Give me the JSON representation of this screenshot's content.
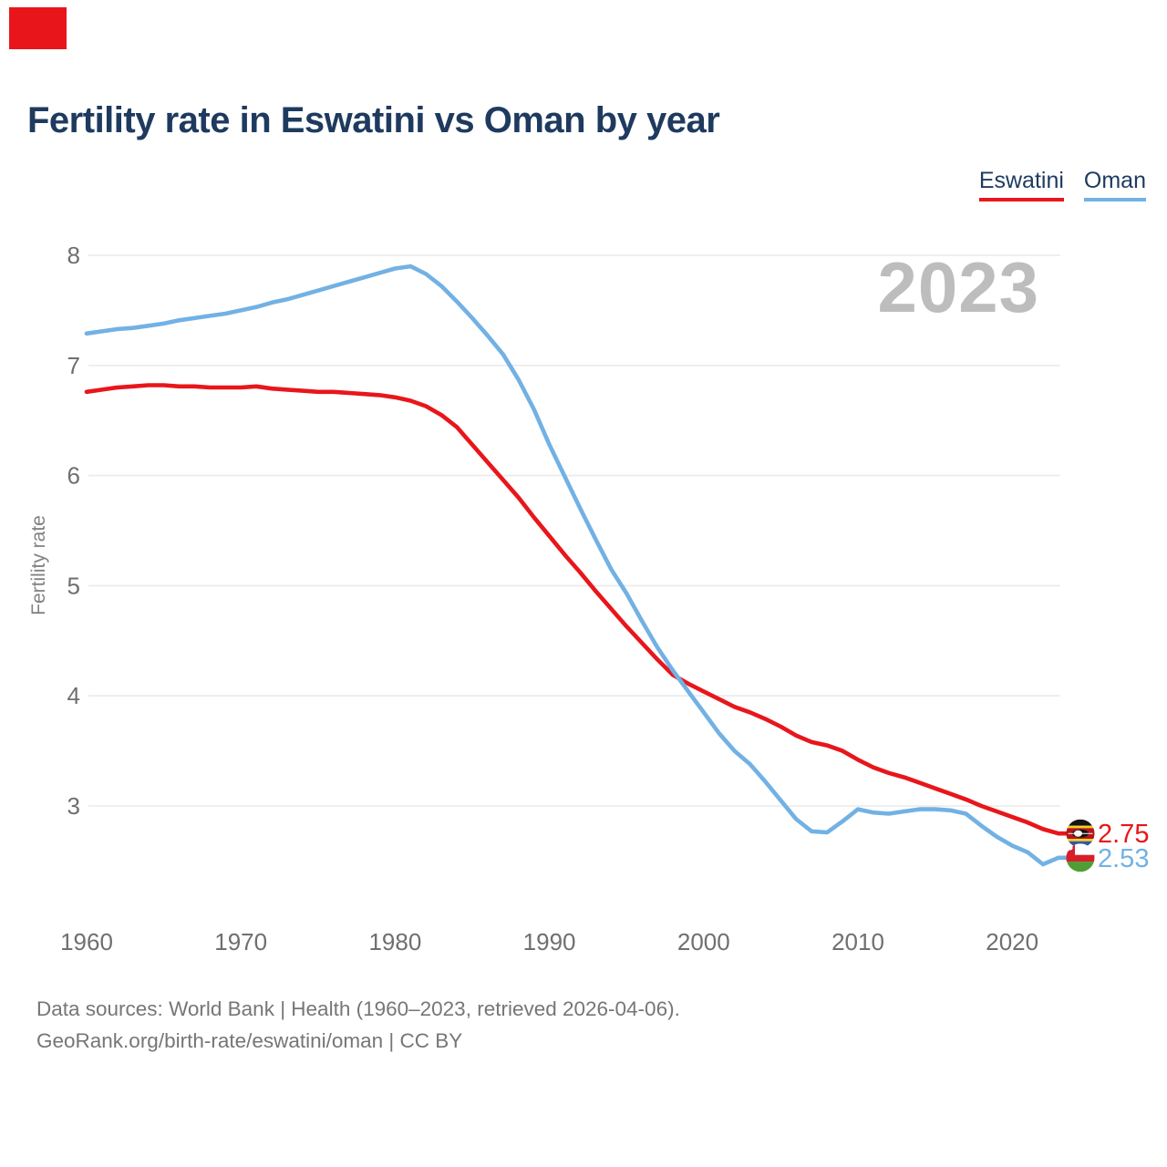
{
  "indicator": {
    "color": "#e8161b"
  },
  "header": {
    "title": "Fertility rate in Eswatini vs Oman by year"
  },
  "legend": {
    "items": [
      {
        "label": "Eswatini",
        "color": "#e8161b"
      },
      {
        "label": "Oman",
        "color": "#72b1e4"
      }
    ]
  },
  "watermark": {
    "text": "2023"
  },
  "footer": {
    "line1": "Data sources: World Bank | Health (1960–2023, retrieved 2026-04-06).",
    "line2": "GeoRank.org/birth-rate/eswatini/oman | CC BY"
  },
  "chart_data": {
    "type": "line",
    "title": "Fertility rate in Eswatini vs Oman by year",
    "xlabel": "",
    "ylabel": "Fertility rate",
    "x_range": [
      1960,
      2023
    ],
    "ylim": [
      2.3,
      8.2
    ],
    "yticks": [
      3,
      4,
      5,
      6,
      7,
      8
    ],
    "xticks": [
      1960,
      1970,
      1980,
      1990,
      2000,
      2010,
      2020
    ],
    "grid": "horizontal",
    "legend_position": "top-right",
    "watermark": "2023",
    "series": [
      {
        "name": "Eswatini",
        "color": "#e8161b",
        "end_label": "2.75",
        "flag": "eswatini",
        "values": [
          6.76,
          6.78,
          6.8,
          6.81,
          6.82,
          6.82,
          6.81,
          6.81,
          6.8,
          6.8,
          6.8,
          6.81,
          6.79,
          6.78,
          6.77,
          6.76,
          6.76,
          6.75,
          6.74,
          6.73,
          6.71,
          6.68,
          6.63,
          6.55,
          6.44,
          6.28,
          6.12,
          5.96,
          5.8,
          5.62,
          5.45,
          5.28,
          5.12,
          4.95,
          4.79,
          4.63,
          4.48,
          4.33,
          4.19,
          4.11,
          4.04,
          3.97,
          3.9,
          3.85,
          3.79,
          3.72,
          3.64,
          3.58,
          3.55,
          3.5,
          3.42,
          3.35,
          3.3,
          3.26,
          3.21,
          3.16,
          3.11,
          3.06,
          3.0,
          2.95,
          2.9,
          2.85,
          2.79,
          2.75
        ]
      },
      {
        "name": "Oman",
        "color": "#72b1e4",
        "end_label": "2.53",
        "flag": "oman",
        "values": [
          7.29,
          7.31,
          7.33,
          7.34,
          7.36,
          7.38,
          7.41,
          7.43,
          7.45,
          7.47,
          7.5,
          7.53,
          7.57,
          7.6,
          7.64,
          7.68,
          7.72,
          7.76,
          7.8,
          7.84,
          7.88,
          7.9,
          7.83,
          7.72,
          7.58,
          7.43,
          7.27,
          7.1,
          6.87,
          6.6,
          6.28,
          5.99,
          5.7,
          5.42,
          5.15,
          4.93,
          4.68,
          4.44,
          4.23,
          4.04,
          3.85,
          3.66,
          3.5,
          3.38,
          3.22,
          3.05,
          2.88,
          2.77,
          2.76,
          2.86,
          2.97,
          2.94,
          2.93,
          2.95,
          2.97,
          2.97,
          2.96,
          2.93,
          2.82,
          2.72,
          2.64,
          2.58,
          2.47,
          2.53
        ]
      }
    ]
  }
}
